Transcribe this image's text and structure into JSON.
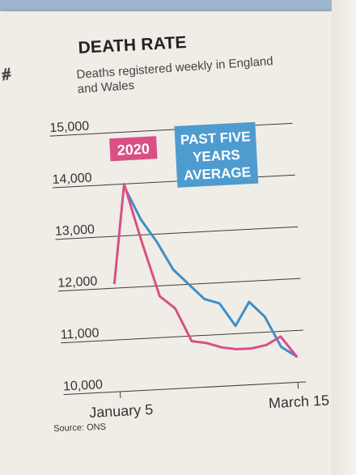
{
  "chart_data": {
    "type": "line",
    "title": "DEATH RATE",
    "subtitle": "Deaths registered weekly in England and Wales",
    "source": "Source: ONS",
    "xlabel": "",
    "ylabel": "",
    "x_tick_labels": [
      "January 5",
      "March 15"
    ],
    "y_ticks": [
      10000,
      11000,
      12000,
      13000,
      14000,
      15000
    ],
    "y_tick_labels": [
      "10,000",
      "11,000",
      "12,000",
      "13,000",
      "14,000",
      "15,000"
    ],
    "ylim": [
      10000,
      15000
    ],
    "grid": true,
    "series": [
      {
        "name": "2020",
        "color": "#d94f86",
        "values": [
          12100,
          14000,
          12850,
          11800,
          11550,
          10900,
          10850,
          10750,
          10700,
          10700,
          10750,
          10900,
          10500
        ]
      },
      {
        "name": "PAST FIVE YEARS AVERAGE",
        "color": "#3d8fc9",
        "values": [
          null,
          13950,
          13300,
          12850,
          12300,
          12000,
          11700,
          11600,
          11150,
          11600,
          11300,
          10700,
          10500
        ]
      }
    ]
  },
  "legend": {
    "series_2020": "2020",
    "series_avg_lines": [
      "PAST FIVE",
      "YEARS",
      "AVERAGE"
    ]
  }
}
